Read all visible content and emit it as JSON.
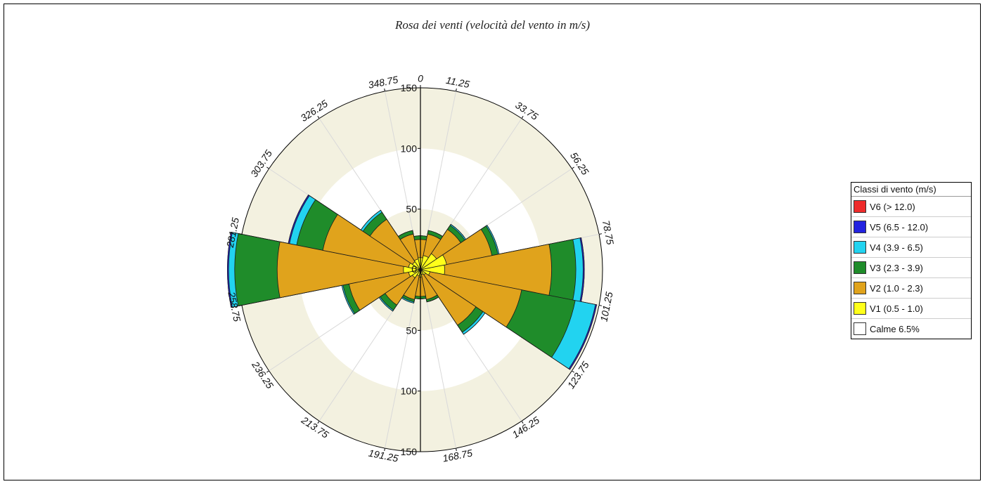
{
  "chart_data": {
    "type": "polar-bar",
    "title": "Rosa dei venti (velocità del vento in m/s)",
    "radial_axis": {
      "range": [
        0,
        150
      ],
      "ticks": [
        0,
        50,
        100,
        150
      ],
      "tick_labels": [
        "0",
        "50",
        "100",
        "150"
      ]
    },
    "directions": [
      "0",
      "11.25",
      "33.75",
      "56.25",
      "78.75",
      "101.25",
      "123.75",
      "146.25",
      "168.75",
      "191.25",
      "213.75",
      "236.25",
      "258.75",
      "281.25",
      "303.75",
      "326.25",
      "348.75"
    ],
    "sector_centers": [
      0,
      22.5,
      45,
      67.5,
      90,
      112.5,
      135,
      157.5,
      180,
      202.5,
      225,
      247.5,
      270,
      292.5,
      315,
      337.5
    ],
    "series": [
      {
        "name": "V1 (0.5 - 1.0)",
        "color": "#ffff1a",
        "values": [
          10,
          12,
          16,
          22,
          20,
          8,
          5,
          4,
          6,
          5,
          8,
          10,
          14,
          10,
          8,
          9
        ]
      },
      {
        "name": "V2 (1.0 - 2.3)",
        "color": "#e0a31c",
        "values": [
          25,
          30,
          40,
          60,
          108,
          85,
          55,
          25,
          22,
          25,
          35,
          60,
          118,
          82,
          50,
          30
        ]
      },
      {
        "name": "V3 (2.3 - 3.9)",
        "color": "#1f8c2a",
        "values": [
          28,
          33,
          44,
          65,
          128,
          130,
          62,
          27,
          24,
          27,
          40,
          65,
          153,
          104,
          57,
          33
        ]
      },
      {
        "name": "V4 (3.9 - 6.5)",
        "color": "#22d3f0",
        "values": [
          28,
          33,
          45,
          66,
          134,
          147,
          64,
          27,
          24,
          28,
          41,
          66,
          158,
          110,
          59,
          33
        ]
      },
      {
        "name": "V5 (6.5 - 12.0)",
        "color": "#2323e0",
        "values": [
          28,
          33,
          45,
          66,
          135,
          148,
          64,
          27,
          24,
          28,
          41,
          66,
          159,
          111,
          59,
          33
        ]
      },
      {
        "name": "V6 (> 12.0)",
        "color": "#ee2b2b",
        "values": [
          28,
          33,
          45,
          66,
          135,
          148,
          64,
          27,
          24,
          28,
          41,
          66,
          159,
          111,
          59,
          33
        ]
      }
    ],
    "legend": {
      "title": "Classi di vento (m/s)",
      "placement": "right",
      "entries": [
        {
          "label": "V6 (> 12.0)",
          "color": "#ee2b2b"
        },
        {
          "label": "V5 (6.5 - 12.0)",
          "color": "#2323e0"
        },
        {
          "label": "V4 (3.9 - 6.5)",
          "color": "#22d3f0"
        },
        {
          "label": "V3 (2.3 - 3.9)",
          "color": "#1f8c2a"
        },
        {
          "label": "V2 (1.0 - 2.3)",
          "color": "#e0a31c"
        },
        {
          "label": "V1 (0.5 - 1.0)",
          "color": "#ffff1a"
        },
        {
          "label": "Calme 6.5%",
          "color": "#ffffff"
        }
      ]
    },
    "band_colors": [
      "#f3f1e0",
      "#ffffff"
    ]
  }
}
